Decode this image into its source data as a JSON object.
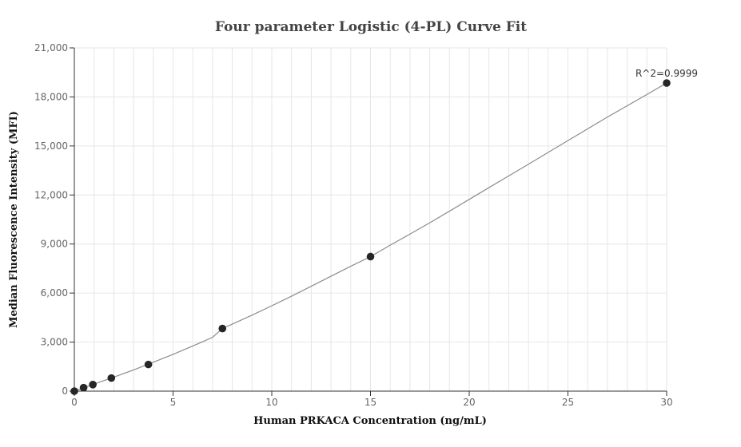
{
  "chart_data": {
    "type": "scatter",
    "title": "Four parameter Logistic (4-PL) Curve Fit",
    "xlabel": "Human PRKACA Concentration (ng/mL)",
    "ylabel": "Median Fluorescence Intensity (MFI)",
    "xlim": [
      0,
      30
    ],
    "ylim": [
      0,
      21000
    ],
    "x_ticks": [
      0,
      5,
      10,
      15,
      20,
      25,
      30
    ],
    "x_tick_labels": [
      "0",
      "5",
      "10",
      "15",
      "20",
      "25",
      "30"
    ],
    "y_ticks": [
      0,
      3000,
      6000,
      9000,
      12000,
      15000,
      18000,
      21000
    ],
    "y_tick_labels": [
      "0",
      "3,000",
      "6,000",
      "9,000",
      "12,000",
      "15,000",
      "18,000",
      "21,000"
    ],
    "grid": true,
    "legend": "none",
    "points": {
      "x": [
        0,
        0.469,
        0.938,
        1.875,
        3.75,
        7.5,
        15,
        30
      ],
      "y": [
        0,
        210,
        400,
        800,
        1630,
        3830,
        8230,
        18850
      ]
    },
    "fit_curve": {
      "model": "4-PL",
      "x": [
        0,
        1,
        2,
        3,
        4,
        5,
        6,
        7,
        7.5,
        8,
        9,
        10,
        11,
        12,
        13,
        14,
        15,
        16,
        17,
        18,
        19,
        20,
        21,
        22,
        23,
        24,
        25,
        26,
        27,
        28,
        29,
        30
      ],
      "y": [
        0,
        430,
        860,
        1300,
        1770,
        2250,
        2760,
        3290,
        3830,
        4100,
        4650,
        5220,
        5810,
        6420,
        7030,
        7640,
        8230,
        8930,
        9610,
        10300,
        11010,
        11730,
        12450,
        13170,
        13880,
        14610,
        15330,
        16050,
        16770,
        17460,
        18150,
        18850
      ]
    },
    "annotations": [
      {
        "text": "R^2=0.9999",
        "x": 30,
        "y": 18850
      }
    ],
    "colors": {
      "point": "#262626",
      "curve": "#8c8c8c",
      "grid": "#e6e6e6",
      "axis": "#333333"
    }
  }
}
